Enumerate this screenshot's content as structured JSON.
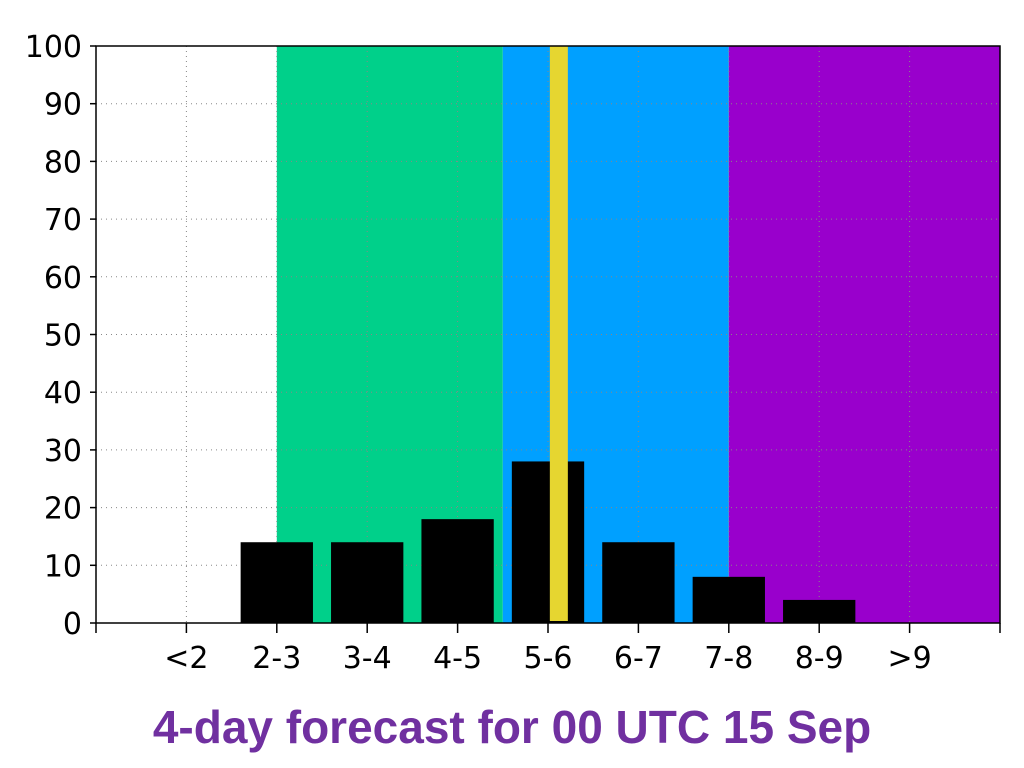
{
  "chart_data": {
    "type": "bar",
    "title": "4-day forecast for 00 UTC 15 Sep",
    "xlabel": "",
    "ylabel": "",
    "categories": [
      "<2",
      "2-3",
      "3-4",
      "4-5",
      "5-6",
      "6-7",
      "7-8",
      "8-9",
      ">9"
    ],
    "values": [
      0,
      14,
      14,
      18,
      28,
      14,
      8,
      4,
      0
    ],
    "ylim": [
      0,
      100
    ],
    "yticks": [
      0,
      10,
      20,
      30,
      40,
      50,
      60,
      70,
      80,
      90,
      100
    ],
    "xlim": [
      1,
      11
    ],
    "x_category_positions": [
      2,
      3,
      4,
      5,
      6,
      7,
      8,
      9,
      10
    ],
    "bar_width": 0.8,
    "grid": true,
    "bar_color": "#000000",
    "background_bands": [
      {
        "x_from": 1,
        "x_to": 3.0,
        "color": "#ffffff"
      },
      {
        "x_from": 3.0,
        "x_to": 5.5,
        "color": "#00d08a"
      },
      {
        "x_from": 5.5,
        "x_to": 8.0,
        "color": "#00a0ff"
      },
      {
        "x_from": 8.0,
        "x_to": 11,
        "color": "#9900cc"
      }
    ],
    "marker_line": {
      "x": 6.12,
      "color": "#e6d630"
    }
  }
}
